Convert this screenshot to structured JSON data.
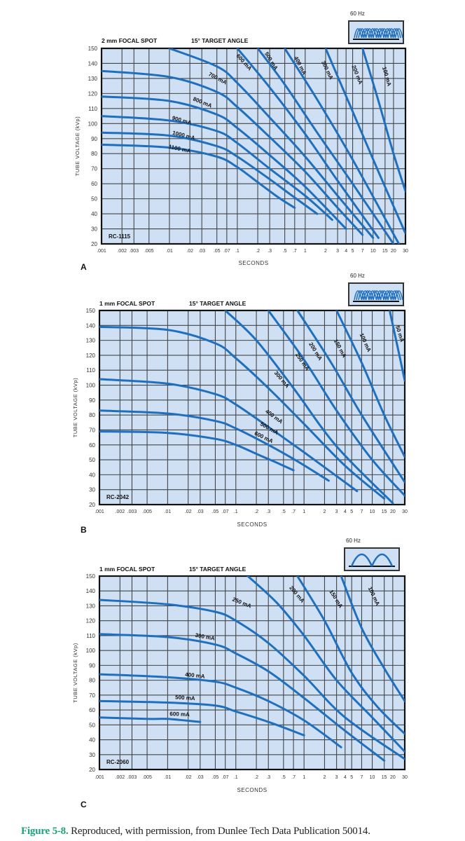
{
  "caption": {
    "figure_label": "Figure 5-8.",
    "text": " Reproduced, with permission, from Dunlee Tech Data Publication 50014."
  },
  "colors": {
    "plot_bg": "#cfe0f4",
    "grid": "#2a2a2a",
    "curve": "#1f6fbf",
    "caption_accent": "#1aa37a"
  },
  "chart_data": [
    {
      "type": "line",
      "panel_letter": "A",
      "title_left": "2 mm FOCAL SPOT",
      "title_right": "15° TARGET ANGLE",
      "tube_model": "RC-1115",
      "rectification_label": "60 Hz",
      "rectification_icon": "three-phase-waveform-icon",
      "xlabel": "SECONDS",
      "ylabel": "TUBE VOLTAGE (kVp)",
      "xscale": "log",
      "xlim": [
        0.001,
        30
      ],
      "ylim": [
        20,
        150
      ],
      "xticks": [
        ".001",
        ".002",
        ".003",
        ".005",
        ".01",
        ".02",
        ".03",
        ".05",
        ".07",
        ".1",
        ".2",
        ".3",
        ".5",
        ".7",
        "1",
        "2",
        "3",
        "4",
        "5",
        "7",
        "10",
        "15",
        "20",
        "30"
      ],
      "xtick_values": [
        0.001,
        0.002,
        0.003,
        0.005,
        0.01,
        0.02,
        0.03,
        0.05,
        0.07,
        0.1,
        0.2,
        0.3,
        0.5,
        0.7,
        1,
        2,
        3,
        4,
        5,
        7,
        10,
        15,
        20,
        30
      ],
      "yticks": [
        20,
        30,
        40,
        50,
        60,
        70,
        80,
        90,
        100,
        110,
        120,
        130,
        140,
        150
      ],
      "grid": true,
      "series": [
        {
          "name": "1100 mA",
          "x": [
            0.001,
            0.01,
            0.05,
            0.1,
            0.2,
            0.4,
            0.7
          ],
          "y": [
            86,
            84,
            78,
            71,
            61,
            51,
            44
          ]
        },
        {
          "name": "1000 mA",
          "x": [
            0.001,
            0.01,
            0.05,
            0.1,
            0.3,
            0.6,
            1.5
          ],
          "y": [
            94,
            92,
            85,
            78,
            63,
            53,
            40
          ]
        },
        {
          "name": "900 mA",
          "x": [
            0.001,
            0.01,
            0.05,
            0.1,
            0.3,
            1,
            2.5
          ],
          "y": [
            105,
            102,
            95,
            87,
            70,
            52,
            36
          ]
        },
        {
          "name": "800 mA",
          "x": [
            0.001,
            0.01,
            0.05,
            0.1,
            0.3,
            1,
            4
          ],
          "y": [
            118,
            115,
            106,
            97,
            79,
            58,
            30
          ]
        },
        {
          "name": "700 mA",
          "x": [
            0.001,
            0.01,
            0.05,
            0.1,
            0.3,
            1,
            3,
            7
          ],
          "y": [
            135,
            131,
            121,
            111,
            91,
            68,
            44,
            26
          ]
        },
        {
          "name": "600 mA",
          "x": [
            0.01,
            0.05,
            0.1,
            0.3,
            1,
            3,
            10
          ],
          "y": [
            150,
            138,
            127,
            104,
            78,
            52,
            24
          ]
        },
        {
          "name": "500 mA",
          "x": [
            0.1,
            0.3,
            1,
            3,
            12
          ],
          "y": [
            150,
            124,
            93,
            62,
            24
          ]
        },
        {
          "name": "400 mA",
          "x": [
            0.2,
            0.5,
            1.5,
            5,
            20
          ],
          "y": [
            150,
            126,
            94,
            60,
            20
          ]
        },
        {
          "name": "300 mA",
          "x": [
            0.5,
            1.5,
            5,
            24
          ],
          "y": [
            150,
            116,
            76,
            20
          ]
        },
        {
          "name": "200 mA",
          "x": [
            2,
            5,
            12,
            30
          ],
          "y": [
            150,
            108,
            68,
            27
          ]
        },
        {
          "name": "100 mA",
          "x": [
            7,
            12,
            20,
            30
          ],
          "y": [
            150,
            115,
            80,
            55
          ]
        }
      ],
      "labels": [
        {
          "text": "700 mA",
          "x": 0.05,
          "y": 129,
          "angle": 28
        },
        {
          "text": "800 mA",
          "x": 0.03,
          "y": 113,
          "angle": 22
        },
        {
          "text": "900 mA",
          "x": 0.015,
          "y": 101,
          "angle": 15
        },
        {
          "text": "1000 mA",
          "x": 0.016,
          "y": 91,
          "angle": 14
        },
        {
          "text": "1100 mA",
          "x": 0.014,
          "y": 82,
          "angle": 12
        },
        {
          "text": "600 mA",
          "x": 0.12,
          "y": 140,
          "angle": 48
        },
        {
          "text": "500 mA",
          "x": 0.3,
          "y": 141,
          "angle": 58
        },
        {
          "text": "400 mA",
          "x": 0.8,
          "y": 138,
          "angle": 62
        },
        {
          "text": "300 mA",
          "x": 2.0,
          "y": 135,
          "angle": 64
        },
        {
          "text": "200 mA",
          "x": 5.5,
          "y": 132,
          "angle": 68
        },
        {
          "text": "100 mA",
          "x": 15,
          "y": 131,
          "angle": 74
        }
      ]
    },
    {
      "type": "line",
      "panel_letter": "B",
      "title_left": "1 mm FOCAL SPOT",
      "title_right": "15° TARGET ANGLE",
      "tube_model": "RC-2042",
      "rectification_label": "60 Hz",
      "rectification_icon": "three-phase-waveform-icon",
      "xlabel": "SECONDS",
      "ylabel": "TUBE VOLTAGE (kVp)",
      "xscale": "log",
      "xlim": [
        0.001,
        30
      ],
      "ylim": [
        20,
        150
      ],
      "xticks": [
        ".001",
        ".002",
        ".003",
        ".005",
        ".01",
        ".02",
        ".03",
        ".05",
        ".07",
        ".1",
        ".2",
        ".3",
        ".5",
        ".7",
        "1",
        "2",
        "3",
        "4",
        "5",
        "7",
        "10",
        "15",
        "20",
        "30"
      ],
      "xtick_values": [
        0.001,
        0.002,
        0.003,
        0.005,
        0.01,
        0.02,
        0.03,
        0.05,
        0.07,
        0.1,
        0.2,
        0.3,
        0.5,
        0.7,
        1,
        2,
        3,
        4,
        5,
        7,
        10,
        15,
        20,
        30
      ],
      "yticks": [
        20,
        30,
        40,
        50,
        60,
        70,
        80,
        90,
        100,
        110,
        120,
        130,
        140,
        150
      ],
      "grid": true,
      "series": [
        {
          "name": "600 mA",
          "x": [
            0.001,
            0.01,
            0.05,
            0.1,
            0.2,
            0.4,
            0.7
          ],
          "y": [
            69,
            68,
            64,
            60,
            54,
            48,
            43
          ]
        },
        {
          "name": "500 mA",
          "x": [
            0.001,
            0.01,
            0.05,
            0.1,
            0.3,
            0.8,
            2.3
          ],
          "y": [
            83,
            81,
            76,
            71,
            60,
            49,
            36
          ]
        },
        {
          "name": "400 mA",
          "x": [
            0.001,
            0.01,
            0.05,
            0.1,
            0.3,
            1,
            6
          ],
          "y": [
            104,
            101,
            94,
            87,
            72,
            55,
            29
          ]
        },
        {
          "name": "300 mA",
          "x": [
            0.001,
            0.01,
            0.05,
            0.1,
            0.3,
            1,
            4,
            15
          ],
          "y": [
            139,
            137,
            128,
            118,
            98,
            74,
            46,
            24
          ]
        },
        {
          "name": "250 mA",
          "x": [
            0.07,
            0.2,
            0.7,
            3,
            20
          ],
          "y": [
            150,
            130,
            98,
            59,
            21
          ]
        },
        {
          "name": "200 mA",
          "x": [
            0.3,
            1,
            3,
            10,
            30
          ],
          "y": [
            150,
            117,
            83,
            50,
            26
          ]
        },
        {
          "name": "150 mA",
          "x": [
            0.8,
            2.5,
            7,
            30
          ],
          "y": [
            150,
            115,
            80,
            35
          ]
        },
        {
          "name": "100 mA",
          "x": [
            3,
            7,
            15,
            30
          ],
          "y": [
            150,
            115,
            80,
            52
          ]
        },
        {
          "name": "50 mA",
          "x": [
            18,
            25,
            30
          ],
          "y": [
            150,
            120,
            103
          ]
        }
      ],
      "labels": [
        {
          "text": "250 mA",
          "x": 0.9,
          "y": 115,
          "angle": 55
        },
        {
          "text": "200 mA",
          "x": 1.4,
          "y": 122,
          "angle": 58
        },
        {
          "text": "150 mA",
          "x": 3.2,
          "y": 124,
          "angle": 62
        },
        {
          "text": "100 mA",
          "x": 7.5,
          "y": 128,
          "angle": 65
        },
        {
          "text": "50 mA",
          "x": 24,
          "y": 134,
          "angle": 72
        },
        {
          "text": "300 mA",
          "x": 0.45,
          "y": 103,
          "angle": 50
        },
        {
          "text": "400 mA",
          "x": 0.35,
          "y": 78,
          "angle": 36
        },
        {
          "text": "500 mA",
          "x": 0.3,
          "y": 70,
          "angle": 30
        },
        {
          "text": "600 mA",
          "x": 0.25,
          "y": 64,
          "angle": 26
        }
      ]
    },
    {
      "type": "line",
      "panel_letter": "C",
      "title_left": "1 mm FOCAL SPOT",
      "title_right": "15° TARGET ANGLE",
      "tube_model": "RC-2060",
      "rectification_label": "60 Hz",
      "rectification_icon": "single-phase-waveform-icon",
      "xlabel": "SECONDS",
      "ylabel": "TUBE VOLTAGE (kVp)",
      "xscale": "log",
      "xlim": [
        0.001,
        30
      ],
      "ylim": [
        20,
        150
      ],
      "xticks": [
        ".001",
        ".002",
        ".003",
        ".005",
        ".01",
        ".02",
        ".03",
        ".05",
        ".07",
        ".1",
        ".2",
        ".3",
        ".5",
        ".7",
        "1",
        "2",
        "3",
        "4",
        "5",
        "7",
        "10",
        "15",
        "20",
        "30"
      ],
      "xtick_values": [
        0.001,
        0.002,
        0.003,
        0.005,
        0.01,
        0.02,
        0.03,
        0.05,
        0.07,
        0.1,
        0.2,
        0.3,
        0.5,
        0.7,
        1,
        2,
        3,
        4,
        5,
        7,
        10,
        15,
        20,
        30
      ],
      "yticks": [
        20,
        30,
        40,
        50,
        60,
        70,
        80,
        90,
        100,
        110,
        120,
        130,
        140,
        150
      ],
      "grid": true,
      "series": [
        {
          "name": "600 mA",
          "x": [
            0.001,
            0.005,
            0.01,
            0.03
          ],
          "y": [
            55,
            54,
            54,
            52
          ]
        },
        {
          "name": "500 mA",
          "x": [
            0.001,
            0.01,
            0.05,
            0.1,
            0.3,
            1
          ],
          "y": [
            66,
            65,
            63,
            59,
            52,
            43
          ]
        },
        {
          "name": "400 mA",
          "x": [
            0.001,
            0.01,
            0.05,
            0.1,
            0.3,
            1,
            3.5
          ],
          "y": [
            84,
            82,
            79,
            75,
            66,
            53,
            35
          ]
        },
        {
          "name": "300 mA",
          "x": [
            0.001,
            0.01,
            0.05,
            0.1,
            0.3,
            1,
            4,
            15
          ],
          "y": [
            111,
            109,
            104,
            98,
            86,
            68,
            46,
            26
          ]
        },
        {
          "name": "250 mA",
          "x": [
            0.001,
            0.01,
            0.05,
            0.1,
            0.3,
            1,
            4,
            30
          ],
          "y": [
            134,
            131,
            126,
            120,
            105,
            83,
            55,
            27
          ]
        },
        {
          "name": "200 mA",
          "x": [
            0.15,
            0.4,
            1,
            3,
            10,
            30
          ],
          "y": [
            150,
            132,
            110,
            80,
            55,
            32
          ]
        },
        {
          "name": "150 mA",
          "x": [
            0.8,
            2,
            5,
            12,
            30
          ],
          "y": [
            150,
            120,
            85,
            62,
            44
          ]
        },
        {
          "name": "100 mA",
          "x": [
            3.5,
            7,
            15,
            30
          ],
          "y": [
            150,
            115,
            88,
            66
          ]
        }
      ],
      "labels": [
        {
          "text": "250 mA",
          "x": 0.12,
          "y": 131,
          "angle": 22
        },
        {
          "text": "200 mA",
          "x": 0.75,
          "y": 137,
          "angle": 50
        },
        {
          "text": "150 mA",
          "x": 2.8,
          "y": 134,
          "angle": 58
        },
        {
          "text": "100 mA",
          "x": 10,
          "y": 136,
          "angle": 65
        },
        {
          "text": "300 mA",
          "x": 0.035,
          "y": 108,
          "angle": 10
        },
        {
          "text": "400 mA",
          "x": 0.025,
          "y": 82,
          "angle": 6
        },
        {
          "text": "500 mA",
          "x": 0.018,
          "y": 67,
          "angle": 4
        },
        {
          "text": "600 mA",
          "x": 0.015,
          "y": 56,
          "angle": 2
        }
      ]
    }
  ]
}
